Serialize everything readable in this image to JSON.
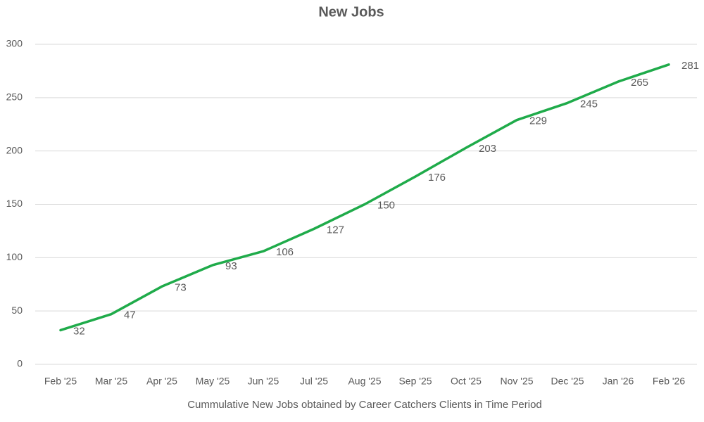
{
  "chart_data": {
    "type": "line",
    "title": "New Jobs",
    "x_label": "Cummulative New Jobs obtained by Career Catchers Clients in Time Period",
    "categories": [
      "Feb '25",
      "Mar '25",
      "Apr '25",
      "May '25",
      "Jun '25",
      "Jul '25",
      "Aug '25",
      "Sep '25",
      "Oct '25",
      "Nov '25",
      "Dec '25",
      "Jan '26",
      "Feb '26"
    ],
    "series": [
      {
        "name": "New Jobs",
        "color": "#1fab4a",
        "values": [
          32,
          47,
          73,
          93,
          106,
          127,
          150,
          176,
          203,
          229,
          245,
          265,
          281
        ]
      }
    ],
    "ylim": [
      0,
      300
    ],
    "yticks": [
      0,
      50,
      100,
      150,
      200,
      250,
      300
    ],
    "grid": true,
    "data_labels": true
  }
}
